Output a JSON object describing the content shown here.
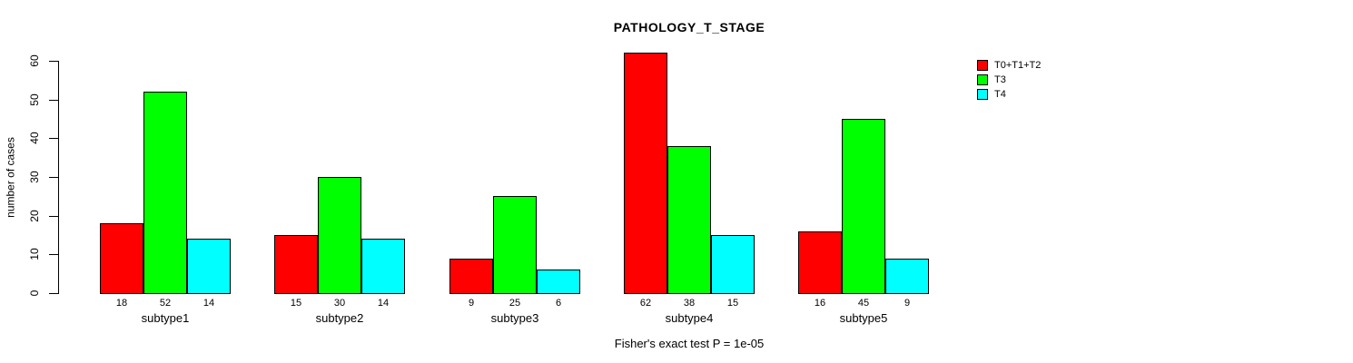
{
  "chart_data": {
    "type": "bar",
    "title": "PATHOLOGY_T_STAGE",
    "ylabel": "number of cases",
    "xlabel": "",
    "footer": "Fisher's exact test P = 1e-05",
    "categories": [
      "subtype1",
      "subtype2",
      "subtype3",
      "subtype4",
      "subtype5"
    ],
    "series": [
      {
        "name": "T0+T1+T2",
        "color": "#FF0000",
        "values": [
          18,
          15,
          9,
          62,
          16
        ]
      },
      {
        "name": "T3",
        "color": "#00FF00",
        "values": [
          52,
          30,
          25,
          38,
          45
        ]
      },
      {
        "name": "T4",
        "color": "#00FFFF",
        "values": [
          14,
          14,
          6,
          15,
          9
        ]
      }
    ],
    "yticks": [
      0,
      10,
      20,
      30,
      40,
      50,
      60
    ],
    "ylim": [
      0,
      60
    ],
    "grid": false,
    "legend_position": "top-right",
    "bar_value_labels": true,
    "colors": {
      "background": "#FFFFFF",
      "axis": "#000000",
      "text": "#000000"
    }
  }
}
